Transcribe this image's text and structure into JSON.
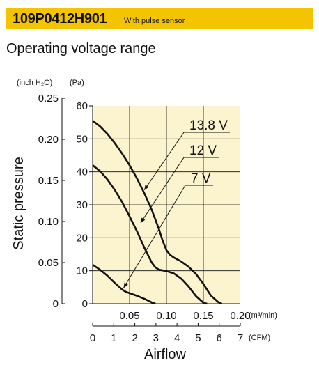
{
  "header": {
    "model": "109P0412H901",
    "subtitle": "With pulse sensor"
  },
  "section_title": "Operating voltage range",
  "chart_data": {
    "type": "line",
    "ylabel": "Static pressure",
    "xlabel": "Airflow",
    "y_inch_unit": "(inch H₂O)",
    "y_pa_unit": "(Pa)",
    "x_m3_unit": "(m³/min)",
    "x_cfm_unit": "(CFM)",
    "y_inch_ticks": [
      "0",
      "0.05",
      "0.10",
      "0.15",
      "0.20",
      "0.25"
    ],
    "y_pa_ticks": [
      "0",
      "10",
      "20",
      "30",
      "40",
      "50",
      "60"
    ],
    "x_m3_ticks": [
      "0.05",
      "0.10",
      "0.15",
      "0.20"
    ],
    "x_cfm_ticks": [
      "0",
      "1",
      "2",
      "3",
      "4",
      "5",
      "6",
      "7"
    ],
    "xlim": [
      0,
      0.2
    ],
    "ylim": [
      0,
      60
    ],
    "grid": true,
    "series": [
      {
        "name": "13.8 V",
        "x": [
          0,
          0.01,
          0.02,
          0.03,
          0.04,
          0.05,
          0.06,
          0.07,
          0.08,
          0.09,
          0.095,
          0.1,
          0.105,
          0.11,
          0.12,
          0.13,
          0.14,
          0.15,
          0.16,
          0.17,
          0.175
        ],
        "y": [
          55.5,
          53.8,
          51.5,
          48.7,
          45.5,
          42,
          38,
          33.5,
          28.5,
          22.5,
          19,
          16.2,
          14.8,
          14,
          12.8,
          11.2,
          9,
          6,
          2.5,
          0.5,
          0
        ]
      },
      {
        "name": "12 V",
        "x": [
          0,
          0.01,
          0.02,
          0.03,
          0.04,
          0.05,
          0.06,
          0.07,
          0.08,
          0.085,
          0.09,
          0.095,
          0.1,
          0.11,
          0.12,
          0.13,
          0.14,
          0.15,
          0.155
        ],
        "y": [
          42,
          40.2,
          37.7,
          34.5,
          30.8,
          26.5,
          22,
          17,
          12.5,
          11,
          10.3,
          10.1,
          9.9,
          9.2,
          7.6,
          5.2,
          2.3,
          0.3,
          0
        ]
      },
      {
        "name": "7 V",
        "x": [
          0,
          0.01,
          0.02,
          0.03,
          0.04,
          0.045,
          0.05,
          0.06,
          0.07,
          0.08,
          0.085
        ],
        "y": [
          11.8,
          10.3,
          8.5,
          6.3,
          4.3,
          3.6,
          3.2,
          2.4,
          1.5,
          0.4,
          0
        ]
      }
    ],
    "annotations": [
      {
        "label": "13.8 V",
        "points_to": [
          0.07,
          34.5
        ]
      },
      {
        "label": "12 V",
        "points_to": [
          0.065,
          24.5
        ]
      },
      {
        "label": "7 V",
        "points_to": [
          0.042,
          4.8
        ]
      }
    ]
  }
}
